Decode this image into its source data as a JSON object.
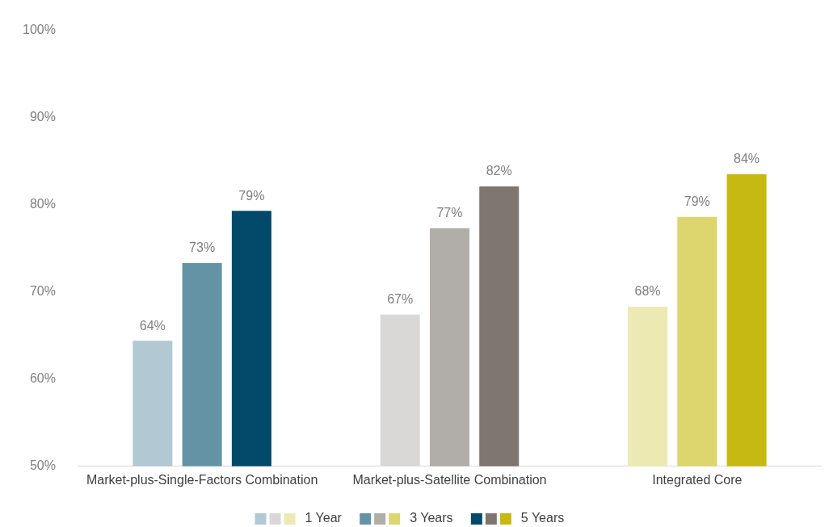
{
  "chart_data": {
    "type": "bar",
    "categories": [
      "Market-plus-Single-Factors Combination",
      "Market-plus-Satellite Combination",
      "Integrated Core"
    ],
    "series": [
      {
        "name": "1 Year",
        "colors": [
          "#b2c8d3",
          "#d9d8d6",
          "#ede9b2"
        ],
        "values": [
          64.4,
          67.4,
          68.3
        ],
        "value_labels": [
          "64%",
          "67%",
          "68%"
        ]
      },
      {
        "name": "3 Years",
        "colors": [
          "#6593a6",
          "#b1ada8",
          "#ddd56e"
        ],
        "values": [
          73.3,
          77.3,
          78.6
        ],
        "value_labels": [
          "73%",
          "77%",
          "79%"
        ]
      },
      {
        "name": "5 Years",
        "colors": [
          "#034a6a",
          "#7f7670",
          "#c6b912"
        ],
        "values": [
          79.3,
          82.1,
          83.5
        ],
        "value_labels": [
          "79%",
          "82%",
          "84%"
        ]
      }
    ],
    "ylim": [
      50,
      100
    ],
    "yticks": [
      {
        "value": 50,
        "label": "50%"
      },
      {
        "value": 60,
        "label": "60%"
      },
      {
        "value": 70,
        "label": "70%"
      },
      {
        "value": 80,
        "label": "80%"
      },
      {
        "value": 90,
        "label": "90%"
      },
      {
        "value": 100,
        "label": "100%"
      }
    ],
    "grid": false,
    "legend": "bottom"
  }
}
